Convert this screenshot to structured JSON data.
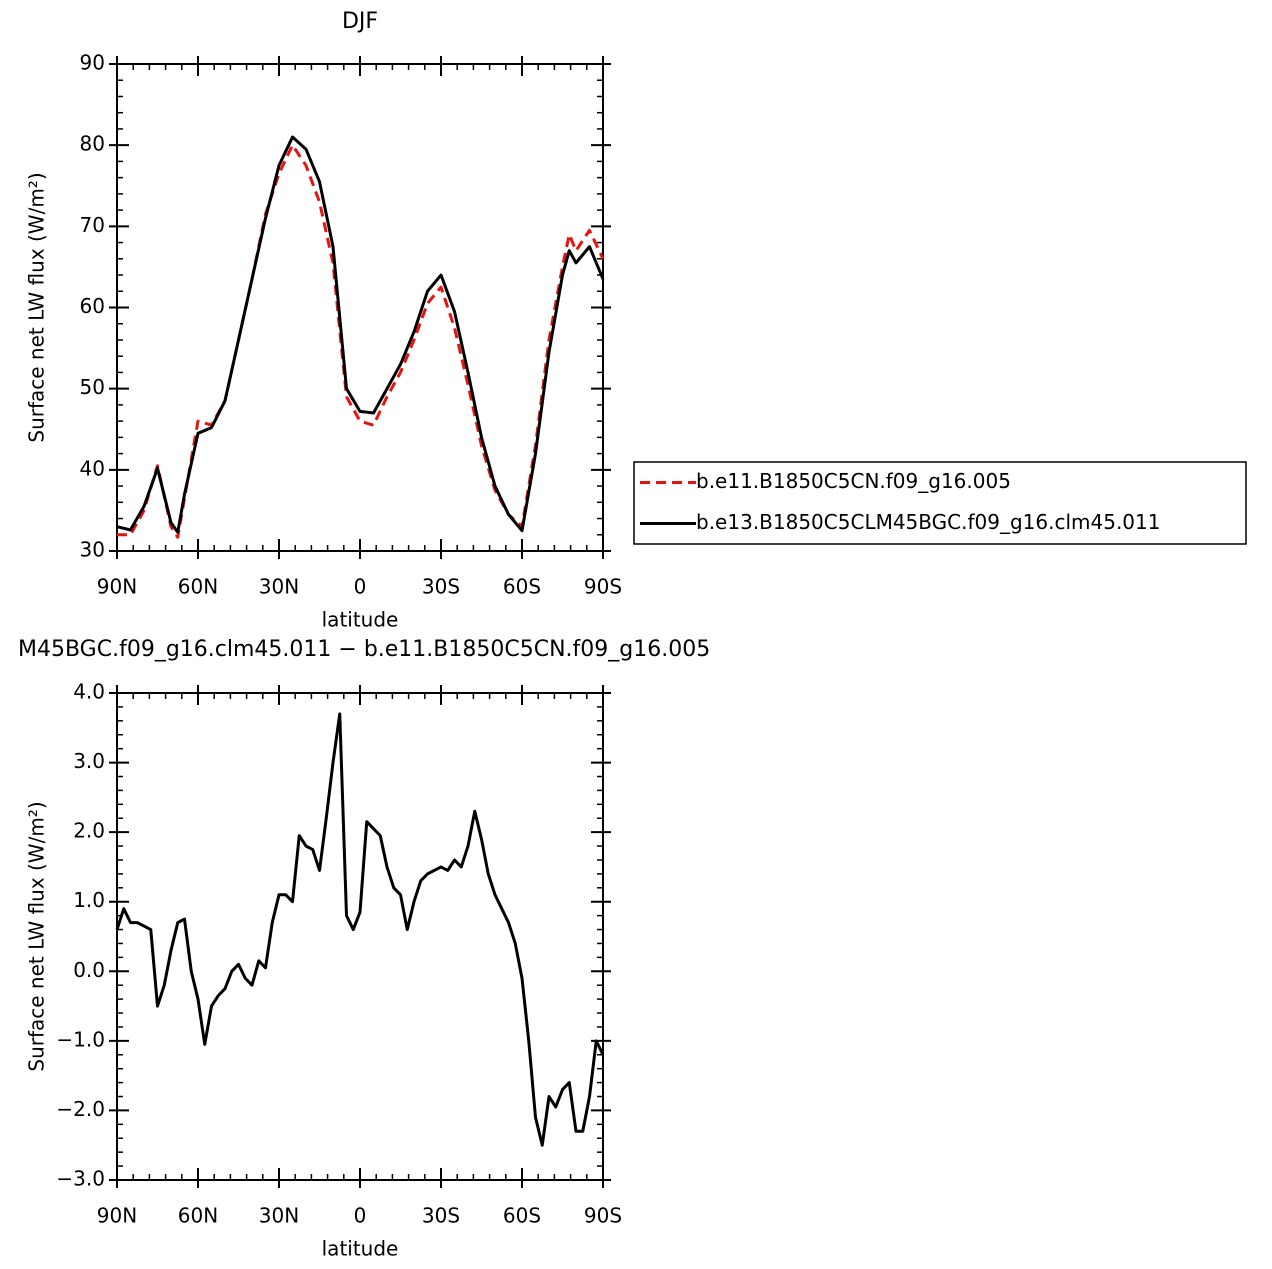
{
  "chart_data": [
    {
      "type": "line",
      "title": "DJF",
      "xlabel": "latitude",
      "ylabel": "Surface net LW flux (W/m²)",
      "x": [
        90,
        85,
        80,
        75,
        70,
        67.5,
        65,
        60,
        55,
        50,
        45,
        40,
        35,
        30,
        25,
        20,
        15,
        10,
        5,
        0,
        -5,
        -10,
        -15,
        -20,
        -25,
        -30,
        -35,
        -40,
        -45,
        -50,
        -55,
        -60,
        -65,
        -70,
        -75,
        -77.5,
        -80,
        -85,
        -90
      ],
      "series": [
        {
          "name": "b.e11.B1850C5CN.f09_g16.005",
          "color": "#e8120e",
          "dash": true,
          "values": [
            32,
            32,
            35,
            40.5,
            33,
            31.7,
            36.5,
            46,
            45.5,
            48.5,
            56,
            63.5,
            71.5,
            76.5,
            80,
            77.5,
            73,
            65.5,
            49,
            46,
            45.5,
            49,
            52,
            56,
            60.5,
            62.5,
            57.5,
            50.5,
            43,
            37.5,
            34.5,
            33,
            43,
            56,
            65,
            69,
            67,
            69.5,
            66
          ]
        },
        {
          "name": "b.e13.B1850C5CLM45BGC.f09_g16.clm45.011",
          "color": "#000000",
          "dash": false,
          "values": [
            33,
            32.6,
            35.5,
            40.2,
            33.5,
            32.3,
            37,
            44.5,
            45.2,
            48.5,
            56,
            63.5,
            71,
            77.5,
            81,
            79.5,
            75.5,
            67.5,
            50,
            47.2,
            47,
            50,
            53,
            57,
            62,
            64,
            59.5,
            52,
            44,
            38,
            34.5,
            32.5,
            42,
            54.5,
            64,
            67,
            65.5,
            67.5,
            63.5
          ]
        }
      ],
      "xlim": [
        90,
        -90
      ],
      "xticks": [
        {
          "value": 90,
          "label": "90N"
        },
        {
          "value": 60,
          "label": "60N"
        },
        {
          "value": 30,
          "label": "30N"
        },
        0,
        {
          "value": -30,
          "label": "30S"
        },
        {
          "value": -60,
          "label": "60S"
        },
        {
          "value": -90,
          "label": "90S"
        }
      ],
      "ylim": [
        30,
        90
      ],
      "yticks": [
        30,
        40,
        50,
        60,
        70,
        80,
        90
      ],
      "legend": "right"
    },
    {
      "type": "line",
      "title": "M45BGC.f09_g16.clm45.011 − b.e11.B1850C5CN.f09_g16.005",
      "xlabel": "latitude",
      "ylabel": "Surface net LW flux (W/m²)",
      "x": [
        90,
        87.5,
        85,
        82.5,
        80,
        77.5,
        75,
        72.5,
        70,
        67.5,
        65,
        62.5,
        60,
        57.5,
        55,
        52.5,
        50,
        47.5,
        45,
        42.5,
        40,
        37.5,
        35,
        32.5,
        30,
        27.5,
        25,
        22.5,
        20,
        17.5,
        15,
        12.5,
        10,
        7.5,
        5,
        2.5,
        0,
        -2.5,
        -5,
        -7.5,
        -10,
        -12.5,
        -15,
        -17.5,
        -20,
        -22.5,
        -25,
        -27.5,
        -30,
        -32.5,
        -35,
        -37.5,
        -40,
        -42.5,
        -45,
        -47.5,
        -50,
        -52.5,
        -55,
        -57.5,
        -60,
        -62.5,
        -65,
        -67.5,
        -70,
        -72.5,
        -75,
        -77.5,
        -80,
        -82.5,
        -85,
        -87.5,
        -90
      ],
      "color": "#000000",
      "values": [
        0.6,
        0.9,
        0.7,
        0.7,
        0.65,
        0.6,
        -0.5,
        -0.2,
        0.3,
        0.7,
        0.75,
        0.0,
        -0.4,
        -1.05,
        -0.5,
        -0.35,
        -0.25,
        0.0,
        0.1,
        -0.1,
        -0.2,
        0.15,
        0.05,
        0.7,
        1.1,
        1.1,
        1.0,
        1.95,
        1.8,
        1.75,
        1.45,
        2.2,
        3.0,
        3.7,
        0.8,
        0.6,
        0.85,
        2.15,
        2.05,
        1.95,
        1.5,
        1.2,
        1.1,
        0.6,
        1.0,
        1.3,
        1.4,
        1.45,
        1.5,
        1.45,
        1.6,
        1.5,
        1.8,
        2.3,
        1.9,
        1.4,
        1.1,
        0.9,
        0.7,
        0.4,
        -0.1,
        -1.0,
        -2.1,
        -2.5,
        -1.8,
        -1.95,
        -1.7,
        -1.6,
        -2.3,
        -2.3,
        -1.8,
        -1.0,
        -1.2
      ],
      "xlim": [
        90,
        -90
      ],
      "xticks": [
        {
          "value": 90,
          "label": "90N"
        },
        {
          "value": 60,
          "label": "60N"
        },
        {
          "value": 30,
          "label": "30N"
        },
        0,
        {
          "value": -30,
          "label": "30S"
        },
        {
          "value": -60,
          "label": "60S"
        },
        {
          "value": -90,
          "label": "90S"
        }
      ],
      "ylim": [
        -3,
        4
      ],
      "yticks": [
        {
          "value": -3,
          "label": "−3.0"
        },
        {
          "value": -2,
          "label": "−2.0"
        },
        {
          "value": -1,
          "label": "−1.0"
        },
        {
          "value": 0,
          "label": "0.0"
        },
        {
          "value": 1,
          "label": "1.0"
        },
        {
          "value": 2,
          "label": "2.0"
        },
        {
          "value": 3,
          "label": "3.0"
        },
        {
          "value": 4,
          "label": "4.0"
        }
      ]
    }
  ]
}
